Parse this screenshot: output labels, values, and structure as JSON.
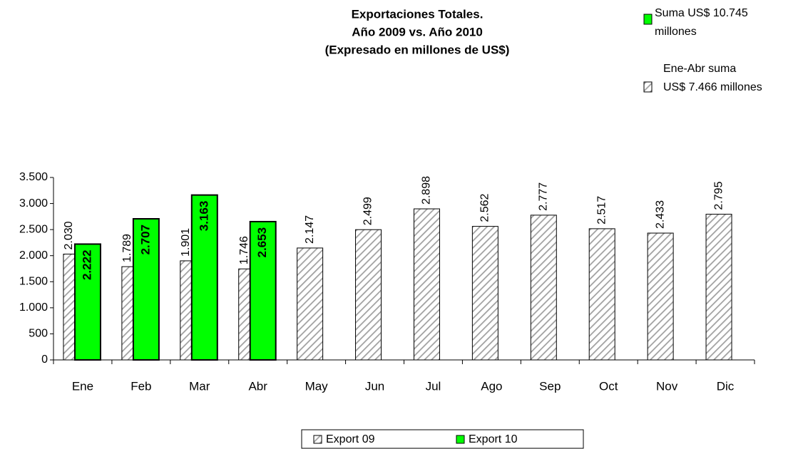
{
  "chart_data": {
    "type": "bar",
    "title": [
      "Exportaciones Totales.",
      "Año 2009 vs. Año 2010",
      "(Expresado en millones de US$)"
    ],
    "annotations": [
      [
        "Suma US$ 10.745",
        "millones"
      ],
      [
        "Ene-Abr suma",
        "US$ 7.466 millones"
      ]
    ],
    "categories": [
      "Ene",
      "Feb",
      "Mar",
      "Abr",
      "May",
      "Jun",
      "Jul",
      "Ago",
      "Sep",
      "Oct",
      "Nov",
      "Dic"
    ],
    "series": [
      {
        "name": "Export 09",
        "color": "#a0a0a0",
        "pattern": "hatch",
        "values": [
          2030,
          1789,
          1901,
          1746,
          2147,
          2499,
          2898,
          2562,
          2777,
          2517,
          2433,
          2795
        ],
        "value_labels": [
          "2.030",
          "1.789",
          "1.901",
          "1.746",
          "2.147",
          "2.499",
          "2.898",
          "2.562",
          "2.777",
          "2.517",
          "2.433",
          "2.795"
        ]
      },
      {
        "name": "Export 10",
        "color": "#00ff00",
        "values": [
          2222,
          2707,
          3163,
          2653,
          null,
          null,
          null,
          null,
          null,
          null,
          null,
          null
        ],
        "value_labels": [
          "2.222",
          "2.707",
          "3.163",
          "2.653",
          null,
          null,
          null,
          null,
          null,
          null,
          null,
          null
        ]
      }
    ],
    "ylim": [
      0,
      3500
    ],
    "yticks": [
      0,
      500,
      {
        "value": 1000,
        "label": "1.000"
      },
      {
        "value": 1500,
        "label": "1.500"
      },
      {
        "value": 2000,
        "label": "2.000"
      },
      {
        "value": 2500,
        "label": "2.500"
      },
      {
        "value": 3000,
        "label": "3.000"
      },
      {
        "value": 3500,
        "label": "3.500"
      }
    ],
    "legend": "bottom"
  }
}
